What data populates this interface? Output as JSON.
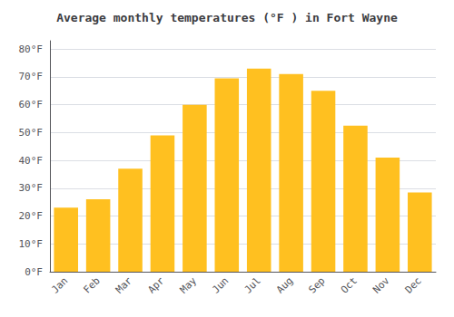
{
  "chart_data": {
    "type": "bar",
    "title": "Average monthly temperatures (°F ) in Fort Wayne",
    "categories": [
      "Jan",
      "Feb",
      "Mar",
      "Apr",
      "May",
      "Jun",
      "Jul",
      "Aug",
      "Sep",
      "Oct",
      "Nov",
      "Dec"
    ],
    "values": [
      23,
      26,
      37,
      49,
      60,
      69.5,
      73,
      71,
      65,
      52.5,
      41,
      28.5
    ],
    "color": "#FFC020",
    "ylim": [
      0,
      83
    ],
    "yticks": [
      {
        "value": 0,
        "label": "0°F"
      },
      {
        "value": 10,
        "label": "10°F"
      },
      {
        "value": 20,
        "label": "20°F"
      },
      {
        "value": 30,
        "label": "30°F"
      },
      {
        "value": 40,
        "label": "40°F"
      },
      {
        "value": 50,
        "label": "50°F"
      },
      {
        "value": 60,
        "label": "60°F"
      },
      {
        "value": 70,
        "label": "70°F"
      },
      {
        "value": 80,
        "label": "80°F"
      }
    ],
    "grid": true
  }
}
